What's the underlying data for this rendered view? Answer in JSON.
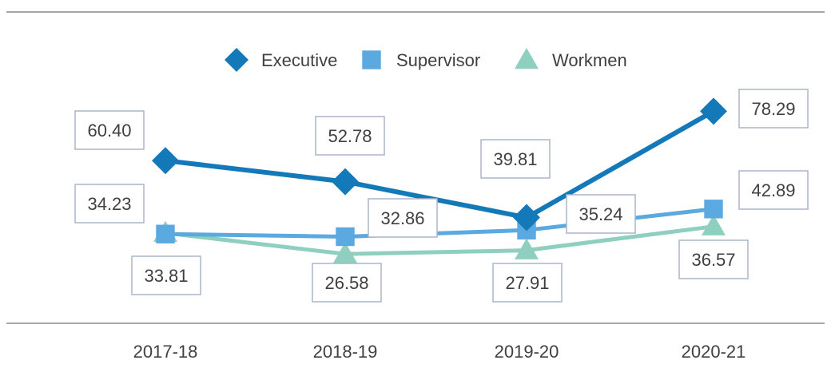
{
  "chart_data": {
    "type": "line",
    "categories": [
      "2017-18",
      "2018-19",
      "2019-20",
      "2020-21"
    ],
    "series": [
      {
        "name": "Executive",
        "values": [
          60.4,
          52.78,
          39.81,
          78.29
        ],
        "labels": [
          "60.40",
          "52.78",
          "39.81",
          "78.29"
        ],
        "color": "#1479b8",
        "marker": "diamond"
      },
      {
        "name": "Supervisor",
        "values": [
          33.81,
          32.86,
          35.24,
          42.89
        ],
        "labels": [
          "33.81",
          "32.86",
          "35.24",
          "42.89"
        ],
        "color": "#5aa9e0",
        "marker": "square"
      },
      {
        "name": "Workmen",
        "values": [
          34.23,
          26.58,
          27.91,
          36.57
        ],
        "labels": [
          "34.23",
          "26.58",
          "27.91",
          "36.57"
        ],
        "color": "#8fcfc0",
        "marker": "triangle"
      }
    ],
    "legend_position": "top-center",
    "grid": false
  }
}
